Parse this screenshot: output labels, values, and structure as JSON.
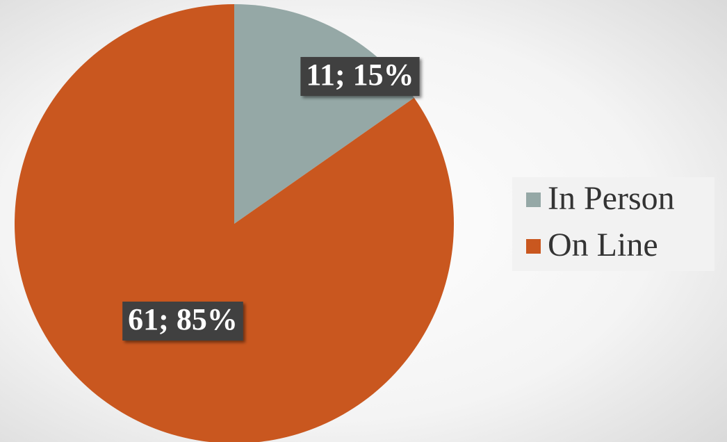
{
  "chart_data": {
    "type": "pie",
    "categories": [
      "In Person",
      "On Line"
    ],
    "values": [
      11,
      61
    ],
    "value_labels": [
      "11; 15%",
      "61; 85%"
    ],
    "colors": [
      "#95a8a6",
      "#c9571f"
    ],
    "legend": "right"
  }
}
